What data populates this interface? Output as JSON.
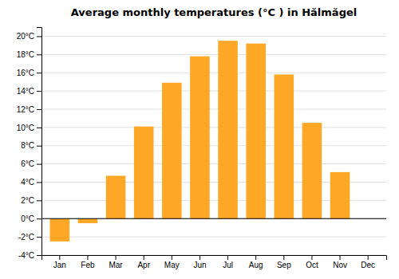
{
  "chart_data": {
    "type": "bar",
    "title": "Average monthly temperatures (°C ) in Hălmăgel",
    "categories": [
      "Jan",
      "Feb",
      "Mar",
      "Apr",
      "May",
      "Jun",
      "Jul",
      "Aug",
      "Sep",
      "Oct",
      "Nov",
      "Dec"
    ],
    "values": [
      -2.5,
      -0.5,
      4.7,
      10.1,
      14.9,
      17.8,
      19.5,
      19.2,
      15.8,
      10.5,
      5.1,
      0.0
    ],
    "color": "#FFA726",
    "ylim": [
      -4,
      21
    ],
    "yticks": [
      {
        "value": -4,
        "label": "-4°C"
      },
      {
        "value": -2,
        "label": "-2°C"
      },
      {
        "value": 0,
        "label": "0°C"
      },
      {
        "value": 2,
        "label": "2°C"
      },
      {
        "value": 4,
        "label": "4°C"
      },
      {
        "value": 6,
        "label": "6°C"
      },
      {
        "value": 8,
        "label": "8°C"
      },
      {
        "value": 10,
        "label": "10°C"
      },
      {
        "value": 12,
        "label": "12°C"
      },
      {
        "value": 14,
        "label": "14°C"
      },
      {
        "value": 16,
        "label": "16°C"
      },
      {
        "value": 18,
        "label": "18°C"
      },
      {
        "value": 20,
        "label": "20°C"
      }
    ],
    "grid": true
  }
}
